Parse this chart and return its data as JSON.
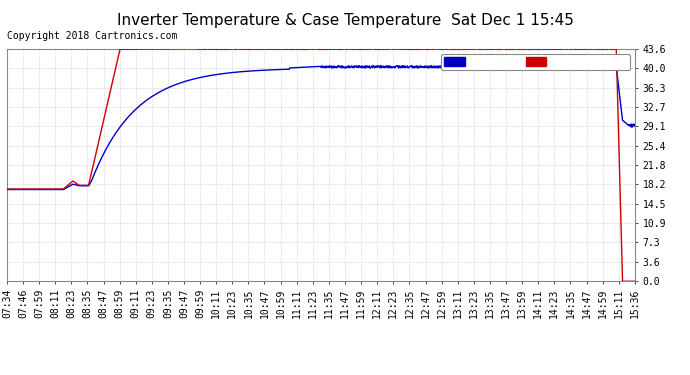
{
  "title": "Inverter Temperature & Case Temperature  Sat Dec 1 15:45",
  "copyright": "Copyright 2018 Cartronics.com",
  "y_ticks": [
    0.0,
    3.6,
    7.3,
    10.9,
    14.5,
    18.2,
    21.8,
    25.4,
    29.1,
    32.7,
    36.3,
    40.0,
    43.6
  ],
  "x_labels": [
    "07:34",
    "07:46",
    "07:59",
    "08:11",
    "08:23",
    "08:35",
    "08:47",
    "08:59",
    "09:11",
    "09:23",
    "09:35",
    "09:47",
    "09:59",
    "10:11",
    "10:23",
    "10:35",
    "10:47",
    "10:59",
    "11:11",
    "11:23",
    "11:35",
    "11:47",
    "11:59",
    "12:11",
    "12:23",
    "12:35",
    "12:47",
    "12:59",
    "13:11",
    "13:23",
    "13:35",
    "13:47",
    "13:59",
    "14:11",
    "14:23",
    "14:35",
    "14:47",
    "14:59",
    "15:11",
    "15:36"
  ],
  "bg_color": "#ffffff",
  "plot_bg_color": "#ffffff",
  "grid_color": "#bbbbbb",
  "case_color": "#0000cc",
  "inverter_color": "#cc0000",
  "legend_case_bg": "#0000bb",
  "legend_inverter_bg": "#cc0000",
  "ylim": [
    0.0,
    43.6
  ],
  "title_fontsize": 11,
  "copyright_fontsize": 7,
  "tick_fontsize": 7
}
